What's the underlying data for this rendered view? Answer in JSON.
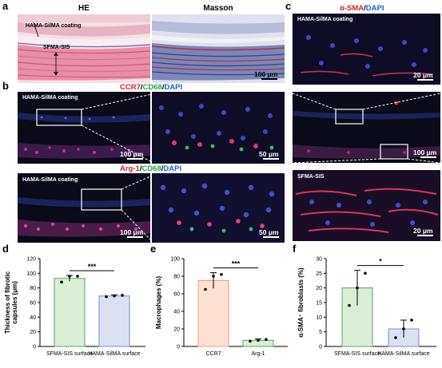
{
  "panels": {
    "a": {
      "label": "a",
      "titles": [
        "HE",
        "Masson"
      ],
      "tags": [
        "HAMA-SilMA coating",
        "SFMA-SIS"
      ],
      "scale": "100 μm"
    },
    "b": {
      "label": "b",
      "row1_legend": [
        {
          "text": "CCR7",
          "color": "#d8202a"
        },
        {
          "text": "/",
          "color": "#000000"
        },
        {
          "text": "CD68",
          "color": "#2aa24a"
        },
        {
          "text": "/",
          "color": "#000000"
        },
        {
          "text": "DAPI",
          "color": "#1f5fcf"
        }
      ],
      "row2_legend": [
        {
          "text": "Arg-1",
          "color": "#d8202a"
        },
        {
          "text": "/",
          "color": "#000000"
        },
        {
          "text": "CD68",
          "color": "#2aa24a"
        },
        {
          "text": "/",
          "color": "#000000"
        },
        {
          "text": "DAPI",
          "color": "#1f5fcf"
        }
      ],
      "tags": [
        "HAMA-SilMA coating",
        "HAMA-SilMA coating"
      ],
      "scales": [
        "100 μm",
        "50 μm",
        "100 μm",
        "50 μm"
      ]
    },
    "c": {
      "label": "c",
      "legend": [
        {
          "text": "α-SMA",
          "color": "#d8202a"
        },
        {
          "text": "/",
          "color": "#000000"
        },
        {
          "text": "DAPI",
          "color": "#1f5fcf"
        }
      ],
      "tags": [
        "HAMA-SilMA coating",
        "SFMA-SIS"
      ],
      "scales": [
        "20 μm",
        "100 μm",
        "20 μm"
      ]
    }
  },
  "chart_data": [
    {
      "panel": "d",
      "type": "bar",
      "ylabel": "Thickness of fibrotic capsules (μm)",
      "ylabel_lines": [
        "Thickness of fibrotic",
        "capsules (μm)"
      ],
      "ylim": [
        0,
        120
      ],
      "yticks": [
        0,
        20,
        40,
        60,
        80,
        100,
        120
      ],
      "categories": [
        "SFMA-SIS surface",
        "HAMA-SilMA surface"
      ],
      "values": [
        93,
        69
      ],
      "errors": [
        4,
        1.5
      ],
      "points": [
        [
          88,
          96,
          96
        ],
        [
          68,
          69,
          70
        ]
      ],
      "bar_colors": [
        "#dbeed7",
        "#dbe1f1"
      ],
      "edge_colors": [
        "#5aa45e",
        "#7b8fc9"
      ],
      "significance": "***"
    },
    {
      "panel": "e",
      "type": "bar",
      "ylabel": "Macrophages (%)",
      "ylabel_lines": [
        "Macrophages (%)"
      ],
      "ylim": [
        0,
        100
      ],
      "yticks": [
        0,
        20,
        40,
        60,
        80,
        100
      ],
      "categories": [
        "CCR7",
        "Arg-1"
      ],
      "values": [
        75,
        7
      ],
      "errors": [
        9,
        1.5
      ],
      "points": [
        [
          65,
          80,
          82
        ],
        [
          6,
          7,
          8
        ]
      ],
      "bar_colors": [
        "#fde1d4",
        "#dbeed7"
      ],
      "edge_colors": [
        "#ef9c83",
        "#5aa45e"
      ],
      "significance": "***"
    },
    {
      "panel": "f",
      "type": "bar",
      "ylabel": "α-SMA⁺ fibroblasts (%)",
      "ylabel_lines": [
        "α-SMA⁺ fibroblasts (%)"
      ],
      "ylim": [
        0,
        30
      ],
      "yticks": [
        0,
        5,
        10,
        15,
        20,
        25,
        30
      ],
      "categories": [
        "SFMA-SIS surface",
        "HAMA-SilMA surface"
      ],
      "values": [
        20,
        6
      ],
      "errors": [
        6,
        3
      ],
      "points": [
        [
          14,
          20,
          25
        ],
        [
          3,
          6,
          9
        ]
      ],
      "bar_colors": [
        "#dbeed7",
        "#dbe1f1"
      ],
      "edge_colors": [
        "#5aa45e",
        "#7b8fc9"
      ],
      "significance": "*"
    }
  ]
}
